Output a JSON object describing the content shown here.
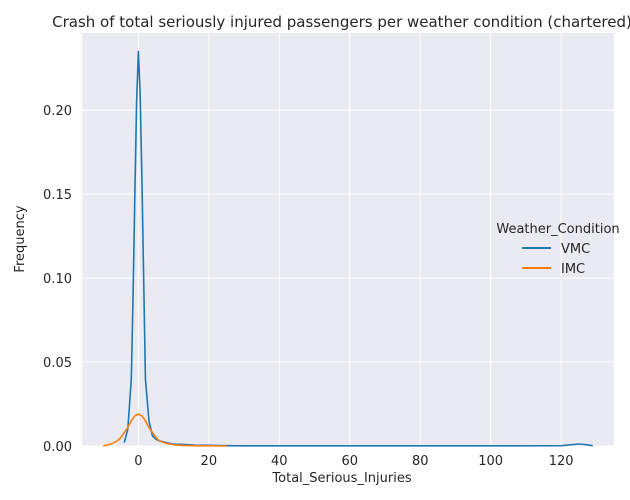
{
  "chart_data": {
    "type": "line",
    "title": "Crash of total seriously injured passengers per weather condition (chartered)",
    "xlabel": "Total_Serious_Injuries",
    "ylabel": "Frequency",
    "xlim": [
      -16,
      135
    ],
    "ylim": [
      0,
      0.246
    ],
    "xticks": [
      0,
      20,
      40,
      60,
      80,
      100,
      120
    ],
    "yticks": [
      0.0,
      0.05,
      0.1,
      0.15,
      0.2
    ],
    "ytick_labels": [
      "0.00",
      "0.05",
      "0.10",
      "0.15",
      "0.20"
    ],
    "grid": true,
    "legend": {
      "title": "Weather_Condition",
      "placement": "center-right"
    },
    "series": [
      {
        "name": "VMC",
        "color": "#1f77b4",
        "x": [
          -4,
          -3,
          -2,
          -1.5,
          -1,
          -0.5,
          0,
          0.5,
          1,
          1.5,
          2,
          3,
          4,
          5,
          6,
          8,
          10,
          12,
          14,
          16,
          20,
          25,
          30,
          40,
          60,
          80,
          100,
          120,
          123,
          125,
          127,
          129
        ],
        "y": [
          0.002,
          0.01,
          0.04,
          0.09,
          0.15,
          0.205,
          0.235,
          0.21,
          0.16,
          0.1,
          0.04,
          0.015,
          0.006,
          0.004,
          0.003,
          0.002,
          0.001,
          0.001,
          0.0008,
          0.0005,
          0.0004,
          0.0002,
          0.0001,
          0.0001,
          0.0001,
          0.0001,
          0.0001,
          0.0002,
          0.0008,
          0.0012,
          0.0008,
          0.0002
        ]
      },
      {
        "name": "IMC",
        "color": "#ff7f0e",
        "x": [
          -10,
          -8,
          -6,
          -5,
          -4,
          -3,
          -2,
          -1,
          0,
          1,
          2,
          3,
          4,
          5,
          6,
          8,
          10,
          12,
          15,
          20,
          25
        ],
        "y": [
          0.0,
          0.001,
          0.003,
          0.005,
          0.008,
          0.011,
          0.015,
          0.018,
          0.019,
          0.018,
          0.015,
          0.011,
          0.008,
          0.005,
          0.003,
          0.0015,
          0.0008,
          0.0004,
          0.0002,
          0.0001,
          0.0
        ]
      }
    ]
  }
}
